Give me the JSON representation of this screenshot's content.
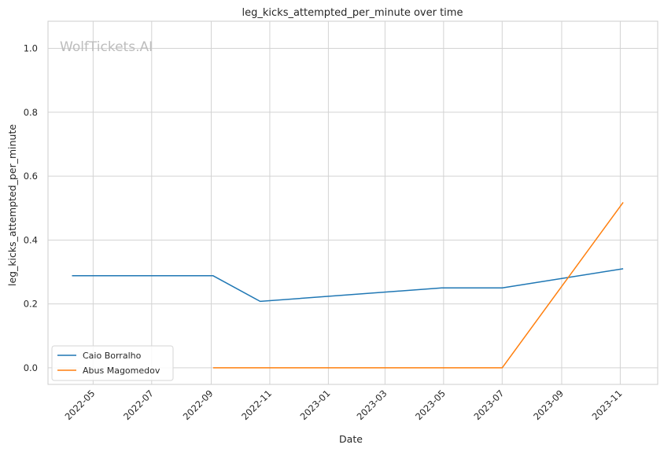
{
  "watermark": "WolfTickets.AI",
  "chart_data": {
    "type": "line",
    "title": "leg_kicks_attempted_per_minute over time",
    "xlabel": "Date",
    "ylabel": "leg_kicks_attempted_per_minute",
    "x_ticks": [
      "2022-05",
      "2022-07",
      "2022-09",
      "2022-11",
      "2023-01",
      "2023-03",
      "2023-05",
      "2023-07",
      "2023-09",
      "2023-11"
    ],
    "y_ticks": [
      "0.0",
      "0.2",
      "0.4",
      "0.6",
      "0.8",
      "1.0"
    ],
    "xlim": [
      "2022-03-15",
      "2023-12-10"
    ],
    "ylim": [
      -0.052,
      1.085
    ],
    "grid": true,
    "legend_position": "lower-left",
    "series": [
      {
        "name": "Caio Borralho",
        "color": "#1f77b4",
        "points": [
          {
            "x": "2022-04-09",
            "y": 0.288
          },
          {
            "x": "2022-09-03",
            "y": 0.288
          },
          {
            "x": "2022-10-22",
            "y": 0.208
          },
          {
            "x": "2023-04-29",
            "y": 0.25
          },
          {
            "x": "2023-07-01",
            "y": 0.25
          },
          {
            "x": "2023-11-04",
            "y": 0.31
          }
        ]
      },
      {
        "name": "Abus Magomedov",
        "color": "#ff7f0e",
        "points": [
          {
            "x": "2022-09-03",
            "y": 0.0
          },
          {
            "x": "2023-07-01",
            "y": 0.0
          },
          {
            "x": "2023-11-04",
            "y": 0.518
          }
        ]
      }
    ]
  }
}
